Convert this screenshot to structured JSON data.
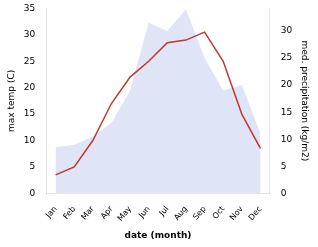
{
  "chart_data": {
    "type": "line",
    "categories": [
      "Jan",
      "Feb",
      "Mar",
      "Apr",
      "May",
      "Jun",
      "Jul",
      "Aug",
      "Sep",
      "Oct",
      "Nov",
      "Dec"
    ],
    "series": [
      {
        "type": "area",
        "color": "#b8c4ee",
        "axis": "y2",
        "values": [
          8.5,
          9.0,
          10.5,
          13.0,
          19.0,
          31.5,
          30.0,
          34.0,
          25.0,
          19.0,
          20.0,
          11.0
        ]
      },
      {
        "type": "line",
        "color": "#c0392b",
        "values": [
          3.5,
          5.0,
          10.0,
          17.0,
          22.0,
          25.0,
          28.5,
          29.0,
          30.5,
          25.0,
          15.0,
          8.5
        ]
      }
    ],
    "xlabel": "date (month)",
    "ylabel": "max temp (C)",
    "y2label": "med. precipitation (kg/m2)",
    "ylim": [
      0,
      35
    ],
    "yticks": [
      0,
      5,
      10,
      15,
      20,
      25,
      30,
      35
    ],
    "y2lim": [
      0,
      34.17
    ],
    "y2ticks": [
      0,
      5,
      10,
      15,
      20,
      25,
      30
    ],
    "grid": false
  }
}
